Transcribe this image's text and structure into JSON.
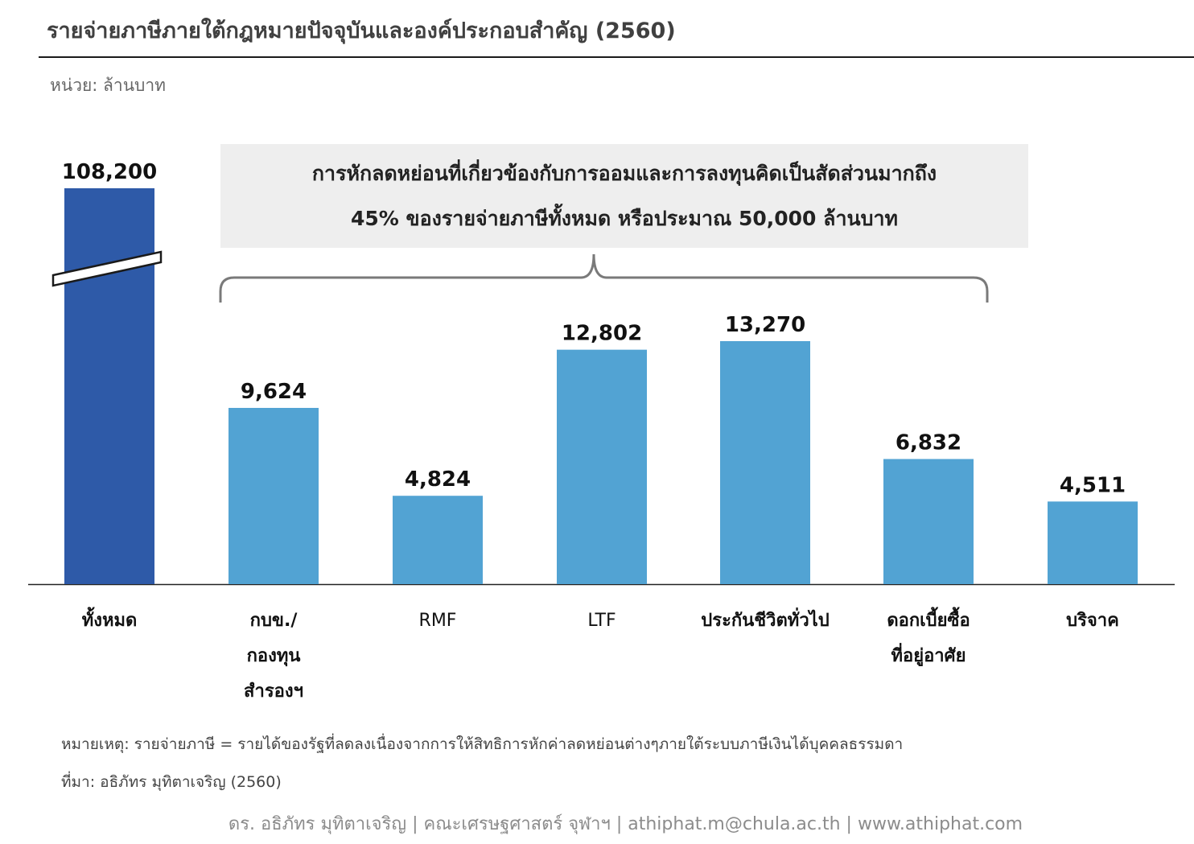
{
  "title": "รายจ่ายภาษีภายใต้กฎหมายปัจจุบันและองค์ประกอบสำคัญ (2560)",
  "unit_label": "หน่วย: ล้านบาท",
  "callout": {
    "line1": "การหักลดหย่อนที่เกี่ยวข้องกับการออมและการลงทุนคิดเป็นสัดส่วนมากถึง",
    "line2": "45% ของรายจ่ายภาษีทั้งหมด หรือประมาณ 50,000 ล้านบาท"
  },
  "chart_data": {
    "type": "bar",
    "categories": [
      "ทั้งหมด",
      "กบข./ กองทุน สำรองฯ",
      "RMF",
      "LTF",
      "ประกันชีวิตทั่วไป",
      "ดอกเบี้ยซื้อ ที่อยู่อาศัย",
      "บริจาค"
    ],
    "values": [
      108200,
      9624,
      4824,
      12802,
      13270,
      6832,
      4511
    ],
    "value_labels": [
      "108,200",
      "9,624",
      "4,824",
      "12,802",
      "13,270",
      "6,832",
      "4,511"
    ],
    "axis_break": "on first bar",
    "colors": {
      "total": "#2e5aa8",
      "component": "#52a3d3"
    },
    "grid": false,
    "legend": "none"
  },
  "x_labels": [
    {
      "lines": [
        "ทั้งหมด"
      ],
      "bold": true
    },
    {
      "lines": [
        "กบข./",
        "กองทุน",
        "สำรองฯ"
      ],
      "bold": true
    },
    {
      "lines": [
        "RMF"
      ],
      "bold": false
    },
    {
      "lines": [
        "LTF"
      ],
      "bold": false
    },
    {
      "lines": [
        "ประกันชีวิตทั่วไป"
      ],
      "bold": true
    },
    {
      "lines": [
        "ดอกเบี้ยซื้อ",
        "ที่อยู่อาศัย"
      ],
      "bold": true
    },
    {
      "lines": [
        "บริจาค"
      ],
      "bold": true
    }
  ],
  "note": "หมายเหตุ: รายจ่ายภาษี = รายได้ของรัฐที่ลดลงเนื่องจากการให้สิทธิการหักค่าลดหย่อนต่างๆภายใต้ระบบภาษีเงินได้บุคคลธรรมดา",
  "source": "ที่มา: อธิภัทร มุทิตาเจริญ (2560)",
  "footer": "ดร. อธิภัทร มุทิตาเจริญ | คณะเศรษฐศาสตร์ จุฬาฯ | athiphat.m@chula.ac.th | www.athiphat.com"
}
